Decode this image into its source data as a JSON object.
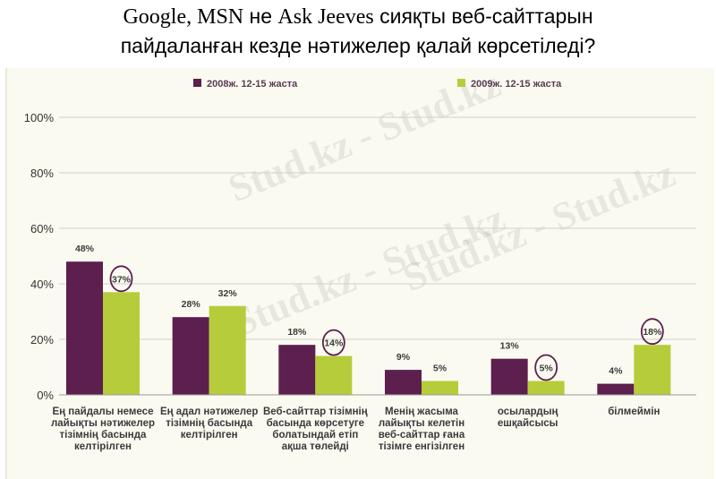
{
  "title": {
    "part1": "Google, MSN",
    "part2": " не ",
    "part3": "Ask Jeeves",
    "part4": " сияқты веб-сайттарын",
    "line2": "пайдаланған кезде нәтижелер қалай көрсетіледі?"
  },
  "watermark": "Stud.kz - Stud.kz",
  "colors": {
    "series1": "#5c1f4e",
    "series2": "#b7cc3a",
    "circle": "#5c1f4e",
    "grid": "#cfcfcf"
  },
  "chart_data": {
    "type": "bar",
    "categories": [
      [
        "Ең пайдалы немесе",
        "лайықты нәтижелер",
        "тізімнің басында",
        "келтірілген"
      ],
      [
        "Ең адал нәтижелер",
        "тізімнің  басында",
        "келтірілген"
      ],
      [
        "Веб-сайттар тізімнің",
        "басында көрсетуге",
        "болатындай етіп",
        "ақша төлейді"
      ],
      [
        "Менің жасыма",
        "лайықты келетін",
        "веб-сайттар ғана",
        "тізімге енгізілген"
      ],
      [
        "осылардың",
        "ешқайсысы"
      ],
      [
        "білмеймін"
      ]
    ],
    "series": [
      {
        "name": "2008ж. 12-15 жаста",
        "values": [
          48,
          28,
          18,
          9,
          13,
          4
        ],
        "labels": [
          "48%",
          "28%",
          "18%",
          "9%",
          "13%",
          "4%"
        ]
      },
      {
        "name": "2009ж. 12-15 жаста",
        "values": [
          37,
          32,
          14,
          5,
          5,
          18
        ],
        "labels": [
          "37%",
          "32%",
          "14%",
          "5%",
          "5%",
          "18%"
        ]
      }
    ],
    "circled": [
      [
        1,
        0
      ],
      [
        1,
        2
      ],
      [
        1,
        4
      ],
      [
        1,
        5
      ]
    ],
    "yticks": [
      "0%",
      "20%",
      "40%",
      "60%",
      "80%",
      "100%"
    ],
    "ylim": [
      0,
      100
    ],
    "grid": true,
    "legend_position": "top"
  }
}
